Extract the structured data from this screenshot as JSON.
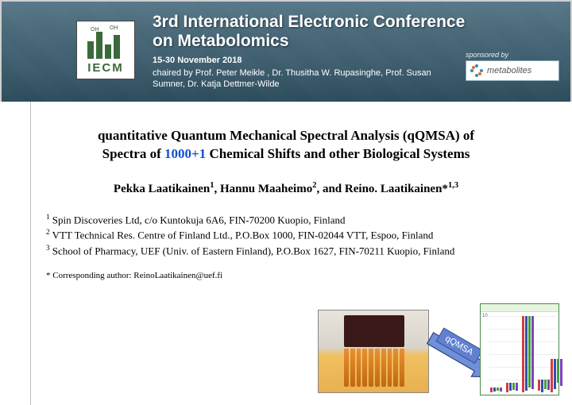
{
  "header": {
    "logo_acronym": "IECM",
    "conference_title_line1": "3rd International Electronic Conference",
    "conference_title_line2": "on Metabolomics",
    "dates": "15-30 November 2018",
    "chairs": "chaired by Prof. Peter Meikle , Dr. Thusitha W. Rupasinghe, Prof. Susan Sumner, Dr. Katja Dettmer-Wilde",
    "sponsor_label": "sponsored by",
    "sponsor_name": "metabolites"
  },
  "title": {
    "line1": "quantitative Quantum Mechanical Spectral Analysis (qQMSA) of",
    "line2a": "Spectra of ",
    "line2_link": "1000+1",
    "line2b": " Chemical Shifts and other Biological Systems"
  },
  "authors": {
    "a1": "Pekka Laatikainen",
    "a1_aff": "1",
    "a2": "Hannu Maaheimo",
    "a2_aff": "2",
    "a3": "Reino. Laatikainen*",
    "a3_aff": "1,3"
  },
  "affiliations": {
    "a1": "Spin Discoveries Ltd, c/o Kuntokuja 6A6, FIN-70200 Kuopio, Finland",
    "a2": "VTT Technical Res. Centre of Finland Ltd., P.O.Box 1000, FIN-02044 VTT, Espoo, Finland",
    "a3": "School of Pharmacy, UEF (Univ. of Eastern Finland), P.O.Box 1627, FIN-70211 Kuopio, Finland"
  },
  "corresponding": "* Corresponding author: ReinoLaatikainen@uef.fi",
  "arrow_label": "qQMSA",
  "arrow_fill": "#7090d8",
  "arrow_stroke": "#304080",
  "chart": {
    "ylabel": "10",
    "bar_colors": [
      "#d04040",
      "#3050b0",
      "#40a040",
      "#8040c0"
    ],
    "groups": [
      {
        "x": 2,
        "heights": [
          6,
          5,
          4,
          5
        ]
      },
      {
        "x": 22,
        "heights": [
          12,
          10,
          9,
          10
        ]
      },
      {
        "x": 42,
        "heights": [
          96,
          94,
          90,
          92
        ]
      },
      {
        "x": 62,
        "heights": [
          14,
          16,
          12,
          13
        ]
      },
      {
        "x": 78,
        "heights": [
          42,
          38,
          30,
          34
        ]
      }
    ]
  },
  "colors": {
    "banner_top": "#5a7a8a",
    "banner_bottom": "#2a4a5a",
    "logo_green": "#3a6a3a",
    "link_blue": "#1050d0"
  }
}
